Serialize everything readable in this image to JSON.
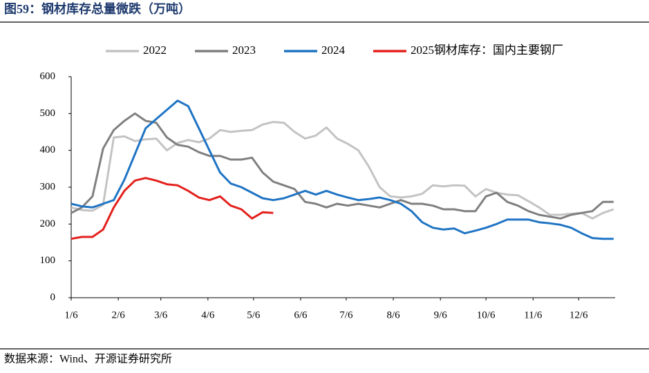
{
  "chart_data": {
    "type": "line",
    "title": "图59：钢材库存总量微跌（万吨）",
    "source": "数据来源：Wind、开源证券研究所",
    "x": [
      6,
      13,
      20,
      27,
      34,
      41,
      48,
      55,
      62,
      69,
      76,
      83,
      90,
      97,
      104,
      111,
      118,
      125,
      132,
      139,
      146,
      153,
      160,
      167,
      174,
      181,
      188,
      195,
      202,
      209,
      216,
      223,
      230,
      237,
      244,
      251,
      258,
      265,
      272,
      279,
      286,
      293,
      300,
      307,
      314,
      321,
      328,
      335,
      342,
      349,
      356,
      363
    ],
    "xlim": [
      6,
      364
    ],
    "xticks": [
      {
        "value": 6,
        "label": "1/6"
      },
      {
        "value": 37,
        "label": "2/6"
      },
      {
        "value": 65,
        "label": "3/6"
      },
      {
        "value": 96,
        "label": "4/6"
      },
      {
        "value": 126,
        "label": "5/6"
      },
      {
        "value": 157,
        "label": "6/6"
      },
      {
        "value": 187,
        "label": "7/6"
      },
      {
        "value": 218,
        "label": "8/6"
      },
      {
        "value": 249,
        "label": "9/6"
      },
      {
        "value": 279,
        "label": "10/6"
      },
      {
        "value": 310,
        "label": "11/6"
      },
      {
        "value": 340,
        "label": "12/6"
      }
    ],
    "ylim": [
      0,
      600
    ],
    "yticks": [
      0,
      100,
      200,
      300,
      400,
      500,
      600
    ],
    "legend": "top",
    "series": [
      {
        "name": "2022",
        "color": "#c3c3c3",
        "values": [
          245,
          238,
          236,
          252,
          435,
          438,
          425,
          430,
          432,
          400,
          420,
          428,
          422,
          432,
          455,
          450,
          453,
          455,
          470,
          477,
          475,
          450,
          432,
          440,
          462,
          432,
          418,
          400,
          355,
          300,
          275,
          272,
          275,
          282,
          305,
          302,
          305,
          304,
          275,
          295,
          285,
          280,
          278,
          262,
          245,
          225,
          225,
          228,
          230,
          215,
          230,
          240
        ]
      },
      {
        "name": "2023",
        "color": "#7f7f7f",
        "values": [
          230,
          245,
          275,
          405,
          455,
          480,
          500,
          480,
          475,
          435,
          415,
          410,
          395,
          385,
          385,
          375,
          375,
          380,
          340,
          315,
          305,
          295,
          260,
          255,
          245,
          255,
          250,
          255,
          250,
          245,
          255,
          265,
          255,
          255,
          250,
          240,
          240,
          235,
          235,
          275,
          285,
          260,
          250,
          235,
          225,
          220,
          215,
          225,
          230,
          235,
          260,
          260
        ]
      },
      {
        "name": "2024",
        "color": "#1f74c4",
        "values": [
          255,
          248,
          245,
          255,
          265,
          320,
          390,
          460,
          485,
          510,
          535,
          520,
          460,
          400,
          340,
          310,
          300,
          285,
          270,
          265,
          270,
          280,
          290,
          280,
          290,
          280,
          272,
          265,
          268,
          272,
          265,
          255,
          235,
          205,
          190,
          185,
          188,
          175,
          182,
          190,
          200,
          212,
          212,
          212,
          205,
          202,
          198,
          190,
          175,
          162,
          160,
          160
        ]
      },
      {
        "name": "2025钢材库存：国内主要钢厂",
        "color": "#e3201c",
        "values": [
          160,
          165,
          165,
          185,
          245,
          290,
          318,
          325,
          318,
          308,
          305,
          290,
          272,
          265,
          275,
          250,
          240,
          215,
          232,
          230,
          null,
          null,
          null,
          null,
          null,
          null,
          null,
          null,
          null,
          null,
          null,
          null,
          null,
          null,
          null,
          null,
          null,
          null,
          null,
          null,
          null,
          null,
          null,
          null,
          null,
          null,
          null,
          null,
          null,
          null,
          null,
          null
        ]
      }
    ]
  }
}
